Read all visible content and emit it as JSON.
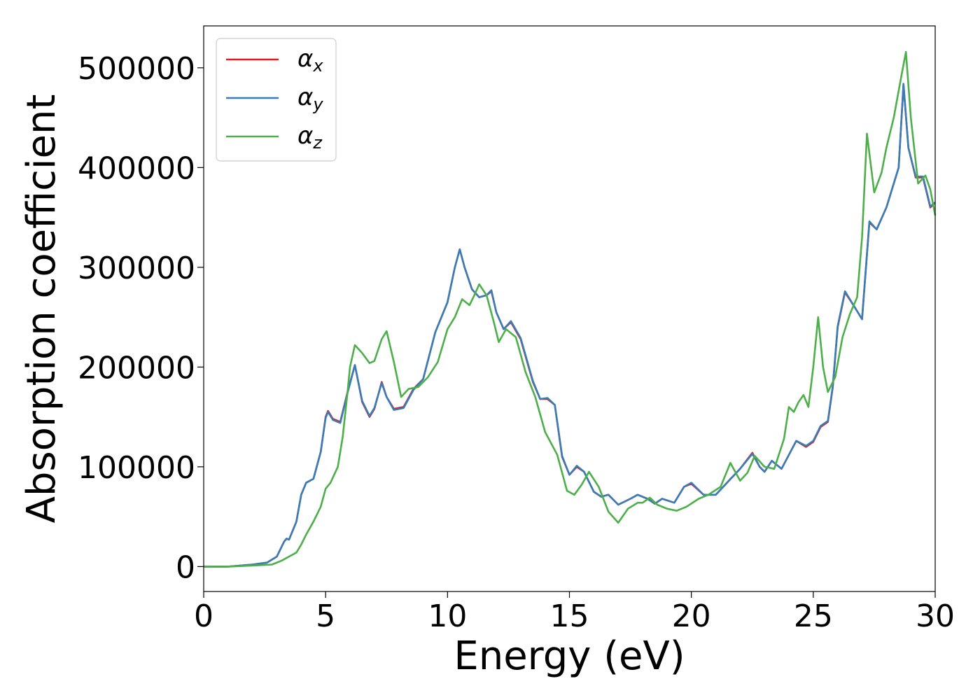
{
  "chart_data": {
    "type": "line",
    "title": "",
    "xlabel": "Energy (eV)",
    "ylabel": "Absorption coefficient",
    "xlim": [
      0,
      30
    ],
    "ylim": [
      -25000,
      542000
    ],
    "xticks": [
      0,
      5,
      10,
      15,
      20,
      25,
      30
    ],
    "xtick_labels": [
      "0",
      "5",
      "10",
      "15",
      "20",
      "25",
      "30"
    ],
    "yticks": [
      0,
      100000,
      200000,
      300000,
      400000,
      500000
    ],
    "ytick_labels": [
      "0",
      "100000",
      "200000",
      "300000",
      "400000",
      "500000"
    ],
    "grid": false,
    "legend_position": "top-left",
    "series": [
      {
        "name": "α_x",
        "legend_symbol": "α",
        "legend_sub": "x",
        "color": "#e41a1c",
        "x": [
          0,
          1,
          2,
          2.6,
          3.0,
          3.3,
          3.4,
          3.5,
          3.8,
          4.0,
          4.2,
          4.5,
          4.8,
          5.0,
          5.1,
          5.3,
          5.6,
          5.9,
          6.2,
          6.5,
          6.8,
          7.0,
          7.3,
          7.5,
          7.8,
          8.2,
          8.6,
          9.0,
          9.5,
          10.0,
          10.3,
          10.5,
          10.7,
          11.0,
          11.3,
          11.6,
          11.8,
          12.0,
          12.3,
          12.6,
          13.0,
          13.5,
          13.8,
          14.1,
          14.4,
          14.7,
          15.0,
          15.3,
          15.6,
          16.0,
          16.3,
          16.6,
          17.0,
          17.5,
          17.8,
          18.2,
          18.5,
          18.8,
          19.3,
          19.7,
          20.0,
          20.5,
          21.0,
          21.5,
          22.0,
          22.5,
          22.8,
          23.0,
          23.3,
          23.7,
          24.0,
          24.3,
          24.7,
          25.0,
          25.3,
          25.6,
          25.8,
          26.0,
          26.3,
          26.7,
          27.0,
          27.3,
          27.6,
          28.0,
          28.5,
          28.7,
          28.9,
          29.2,
          29.5,
          29.8,
          30.0
        ],
        "y": [
          0,
          0,
          2000,
          4000,
          10000,
          25000,
          28000,
          27000,
          45000,
          72000,
          84000,
          88000,
          115000,
          150000,
          156000,
          148000,
          145000,
          175000,
          202000,
          165000,
          150000,
          158000,
          185000,
          170000,
          158000,
          160000,
          178000,
          188000,
          235000,
          265000,
          300000,
          318000,
          300000,
          278000,
          270000,
          272000,
          276000,
          255000,
          238000,
          245000,
          228000,
          185000,
          168000,
          168000,
          162000,
          110000,
          92000,
          100000,
          95000,
          75000,
          70000,
          72000,
          62000,
          68000,
          72000,
          68000,
          63000,
          68000,
          64000,
          80000,
          83000,
          72000,
          72000,
          85000,
          98000,
          114000,
          100000,
          95000,
          106000,
          98000,
          112000,
          126000,
          120000,
          125000,
          140000,
          145000,
          180000,
          240000,
          275000,
          260000,
          248000,
          345000,
          338000,
          360000,
          400000,
          483000,
          420000,
          390000,
          390000,
          360000,
          365000
        ]
      },
      {
        "name": "α_y",
        "legend_symbol": "α",
        "legend_sub": "y",
        "color": "#377eb8",
        "x": [
          0,
          1,
          2,
          2.6,
          3.0,
          3.3,
          3.4,
          3.5,
          3.8,
          4.0,
          4.2,
          4.5,
          4.8,
          5.0,
          5.1,
          5.3,
          5.6,
          5.9,
          6.2,
          6.5,
          6.8,
          7.0,
          7.3,
          7.5,
          7.8,
          8.2,
          8.6,
          9.0,
          9.5,
          10.0,
          10.3,
          10.5,
          10.7,
          11.0,
          11.3,
          11.6,
          11.8,
          12.0,
          12.3,
          12.6,
          13.0,
          13.5,
          13.8,
          14.1,
          14.4,
          14.7,
          15.0,
          15.3,
          15.6,
          16.0,
          16.3,
          16.6,
          17.0,
          17.5,
          17.8,
          18.2,
          18.5,
          18.8,
          19.3,
          19.7,
          20.0,
          20.5,
          21.0,
          21.5,
          22.0,
          22.5,
          22.8,
          23.0,
          23.3,
          23.7,
          24.0,
          24.3,
          24.7,
          25.0,
          25.3,
          25.6,
          25.8,
          26.0,
          26.3,
          26.7,
          27.0,
          27.3,
          27.6,
          28.0,
          28.5,
          28.7,
          28.9,
          29.2,
          29.5,
          29.8,
          30.0
        ],
        "y": [
          0,
          0,
          2000,
          4000,
          10000,
          25000,
          28000,
          27000,
          45000,
          72000,
          84000,
          88000,
          115000,
          149000,
          155000,
          147000,
          144000,
          174000,
          202000,
          166000,
          151000,
          159000,
          184000,
          170000,
          157000,
          159000,
          177000,
          188000,
          235000,
          265000,
          300000,
          318000,
          300000,
          278000,
          270000,
          272000,
          277000,
          255000,
          238000,
          246000,
          229000,
          186000,
          168000,
          169000,
          162000,
          111000,
          92000,
          101000,
          95000,
          75000,
          70000,
          72000,
          62000,
          68000,
          72000,
          68000,
          63000,
          68000,
          64000,
          80000,
          84000,
          72000,
          72000,
          85000,
          98000,
          113000,
          100000,
          95000,
          106000,
          98000,
          112000,
          126000,
          121000,
          126000,
          141000,
          146000,
          181000,
          241000,
          276000,
          260000,
          248000,
          346000,
          338000,
          360000,
          400000,
          484000,
          420000,
          391000,
          391000,
          361000,
          365000
        ]
      },
      {
        "name": "α_z",
        "legend_symbol": "α",
        "legend_sub": "z",
        "color": "#4daf4a",
        "x": [
          0,
          1,
          2,
          2.8,
          3.2,
          3.5,
          3.8,
          4.0,
          4.2,
          4.5,
          4.8,
          5.0,
          5.2,
          5.5,
          5.7,
          5.9,
          6.0,
          6.2,
          6.5,
          6.8,
          7.0,
          7.3,
          7.5,
          7.8,
          8.1,
          8.4,
          8.8,
          9.2,
          9.6,
          10.0,
          10.3,
          10.6,
          10.9,
          11.1,
          11.3,
          11.6,
          11.9,
          12.1,
          12.4,
          12.8,
          13.2,
          13.6,
          14.0,
          14.5,
          14.9,
          15.2,
          15.5,
          15.8,
          16.2,
          16.6,
          17.0,
          17.4,
          17.8,
          18.0,
          18.3,
          18.6,
          19.0,
          19.4,
          19.8,
          20.3,
          20.7,
          21.2,
          21.6,
          22.0,
          22.3,
          22.6,
          23.0,
          23.4,
          23.8,
          24.0,
          24.2,
          24.4,
          24.6,
          24.8,
          25.0,
          25.2,
          25.4,
          25.6,
          25.9,
          26.2,
          26.5,
          26.8,
          27.0,
          27.2,
          27.5,
          27.8,
          28.0,
          28.3,
          28.6,
          28.8,
          29.0,
          29.3,
          29.6,
          29.8,
          30.0
        ],
        "y": [
          0,
          0,
          1000,
          2000,
          6000,
          10000,
          14000,
          22000,
          32000,
          45000,
          60000,
          78000,
          84000,
          100000,
          130000,
          175000,
          200000,
          222000,
          214000,
          204000,
          206000,
          228000,
          236000,
          205000,
          170000,
          178000,
          180000,
          190000,
          205000,
          238000,
          250000,
          268000,
          262000,
          272000,
          283000,
          272000,
          245000,
          225000,
          238000,
          230000,
          195000,
          170000,
          135000,
          112000,
          76000,
          72000,
          82000,
          95000,
          80000,
          55000,
          44000,
          58000,
          64000,
          64000,
          69000,
          62000,
          58000,
          56000,
          60000,
          68000,
          72000,
          80000,
          104000,
          86000,
          94000,
          111000,
          100000,
          98000,
          128000,
          160000,
          155000,
          165000,
          172000,
          160000,
          200000,
          250000,
          200000,
          175000,
          190000,
          230000,
          253000,
          270000,
          330000,
          434000,
          375000,
          395000,
          420000,
          450000,
          490000,
          516000,
          450000,
          384000,
          392000,
          378000,
          352000
        ]
      }
    ]
  }
}
